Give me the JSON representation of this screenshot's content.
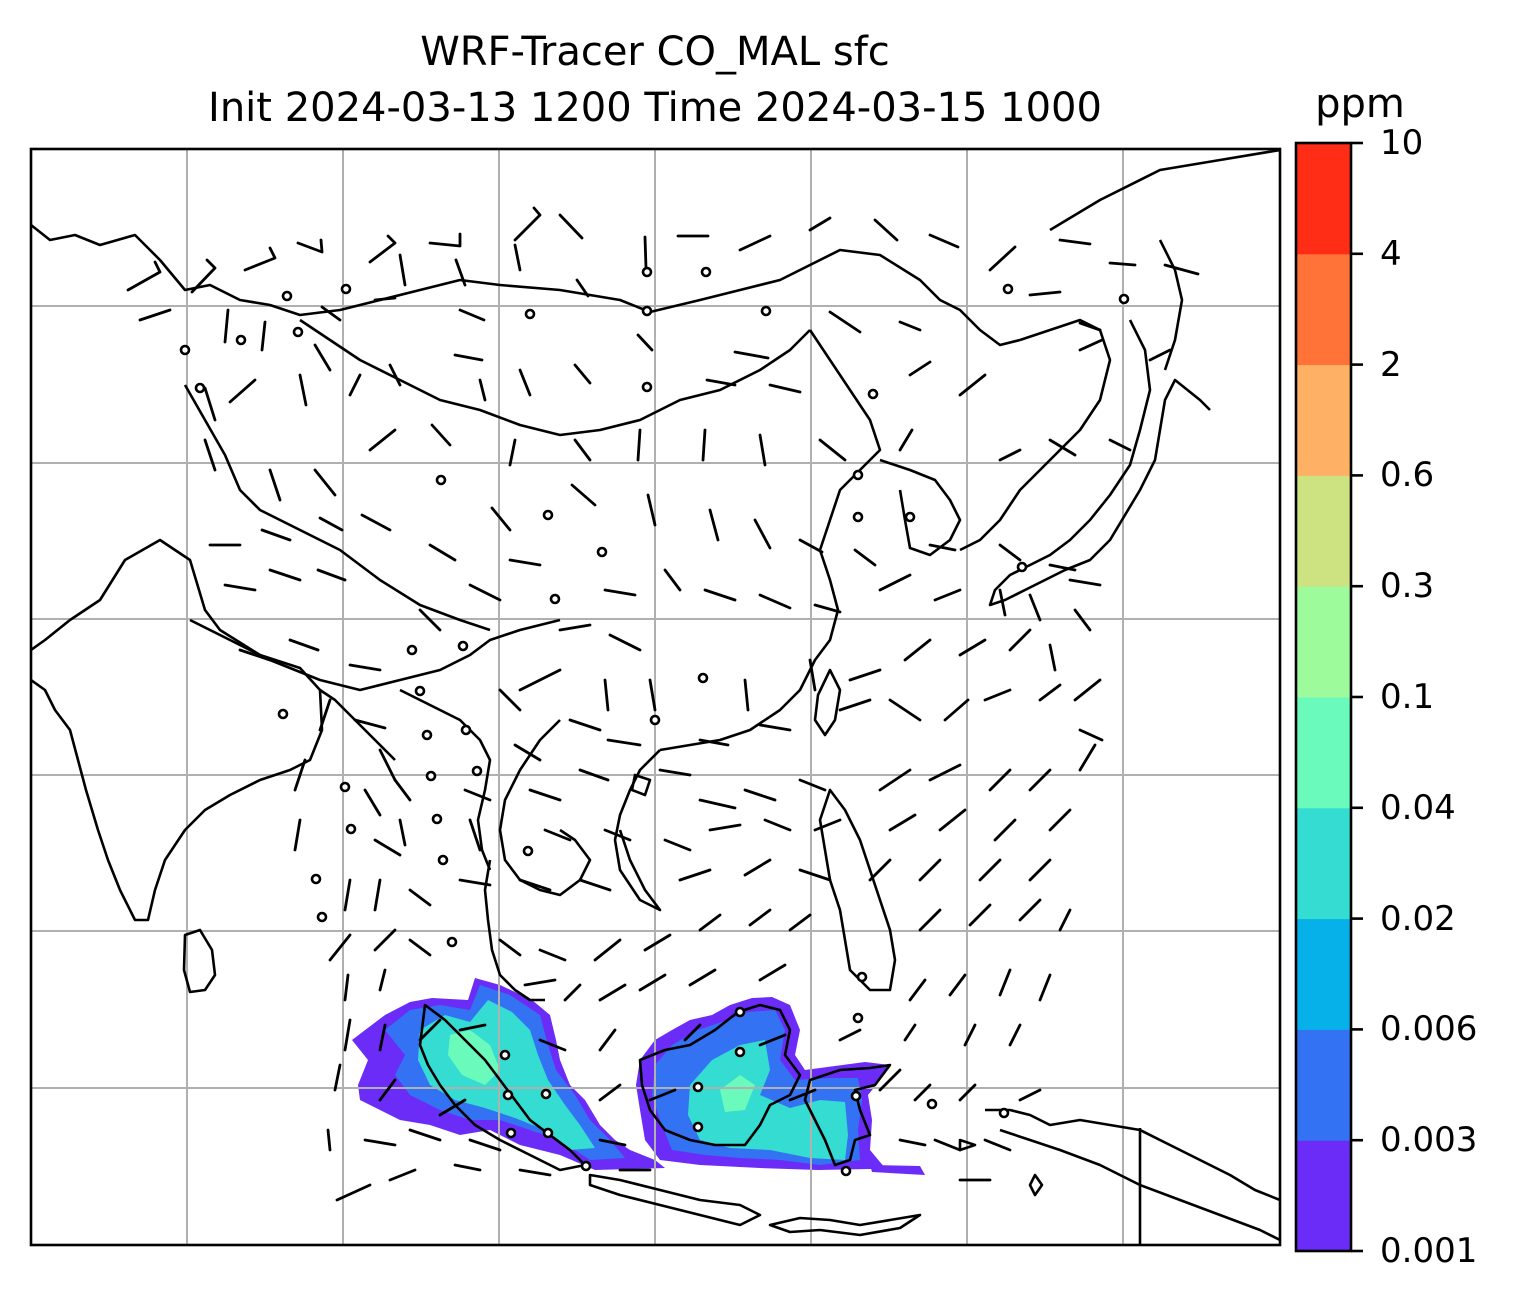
{
  "title_line1": "WRF-Tracer CO_MAL sfc",
  "title_line2": "Init 2024-03-13 1200 Time 2024-03-15 1000",
  "colorbar": {
    "unit": "ppm",
    "levels": [
      "0.001",
      "0.003",
      "0.006",
      "0.02",
      "0.04",
      "0.1",
      "0.3",
      "0.6",
      "2",
      "4",
      "10"
    ],
    "colors": [
      "#6a2cf6",
      "#3372f2",
      "#06b1ea",
      "#34dcd1",
      "#6afbbc",
      "#9dfb9b",
      "#cde280",
      "#feb164",
      "#ff7238",
      "#ff2c16"
    ]
  },
  "map": {
    "gridlines": true,
    "tracer_field": "CO_MAL sfc",
    "tracer_region": "Malaysia / Borneo / Sumatra",
    "wind_barbs": true,
    "coastline_color": "#000000",
    "grid_color": "#b0b0b0"
  }
}
